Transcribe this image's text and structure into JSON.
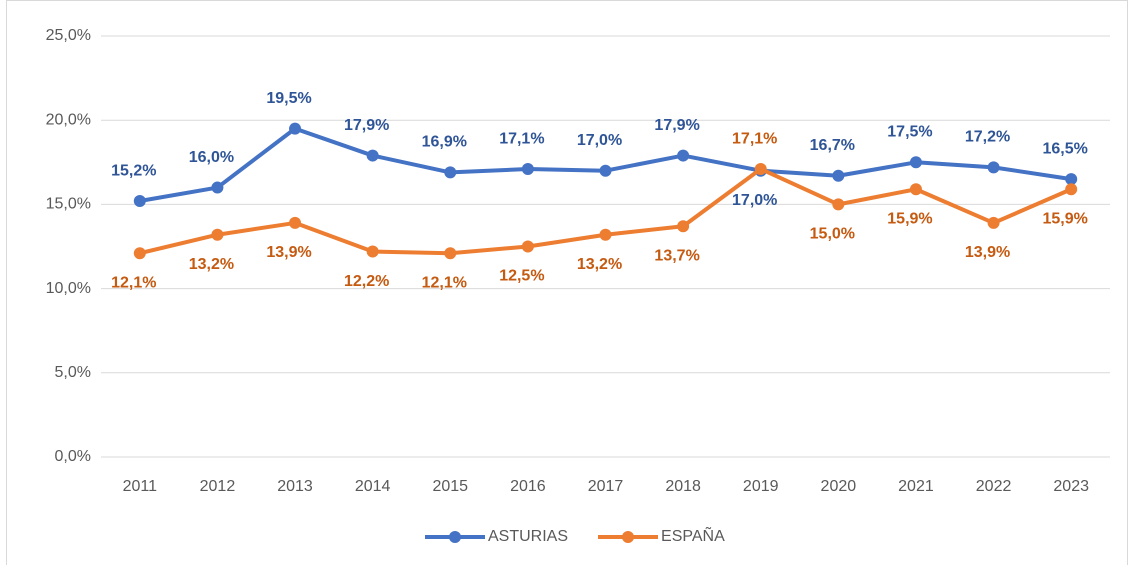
{
  "chart_data": {
    "type": "line",
    "categories": [
      "2011",
      "2012",
      "2013",
      "2014",
      "2015",
      "2016",
      "2017",
      "2018",
      "2019",
      "2020",
      "2021",
      "2022",
      "2023"
    ],
    "series": [
      {
        "name": "ASTURIAS",
        "color": "#4472c4",
        "label_color": "#2f5597",
        "values": [
          15.2,
          16.0,
          19.5,
          17.9,
          16.9,
          17.1,
          17.0,
          17.9,
          17.0,
          16.7,
          17.5,
          17.2,
          16.5
        ],
        "value_labels": [
          "15,2%",
          "16,0%",
          "19,5%",
          "17,9%",
          "16,9%",
          "17,1%",
          "17,0%",
          "17,9%",
          "17,0%",
          "16,7%",
          "17,5%",
          "17,2%",
          "16,5%"
        ]
      },
      {
        "name": "ESPAÑA",
        "color": "#ed7d31",
        "label_color": "#c55a11",
        "values": [
          12.1,
          13.2,
          13.9,
          12.2,
          12.1,
          12.5,
          13.2,
          13.7,
          17.1,
          15.0,
          15.9,
          13.9,
          15.9
        ],
        "value_labels": [
          "12,1%",
          "13,2%",
          "13,9%",
          "12,2%",
          "12,1%",
          "12,5%",
          "13,2%",
          "13,7%",
          "17,1%",
          "15,0%",
          "15,9%",
          "13,9%",
          "15,9%"
        ]
      }
    ],
    "ylim": [
      0,
      25
    ],
    "yticks": [
      {
        "value": 0,
        "label": "0,0%"
      },
      {
        "value": 5,
        "label": "5,0%"
      },
      {
        "value": 10,
        "label": "10,0%"
      },
      {
        "value": 15,
        "label": "15,0%"
      },
      {
        "value": 20,
        "label": "20,0%"
      },
      {
        "value": 25,
        "label": "25,0%"
      }
    ],
    "grid": true,
    "legend": "bottom"
  }
}
